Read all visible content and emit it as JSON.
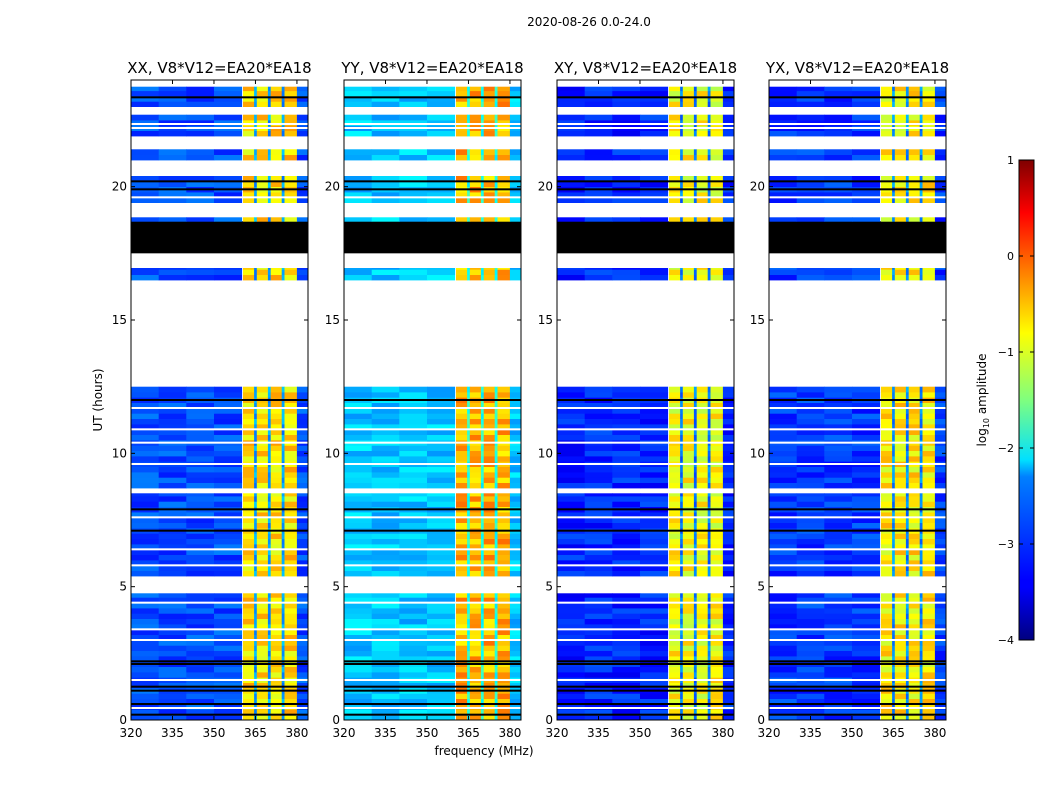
{
  "chart_data": {
    "type": "heatmap",
    "title": "2020-08-26 0.0-24.0",
    "xlabel": "frequency (MHz)",
    "ylabel": "UT (hours)",
    "xlim": [
      320,
      384
    ],
    "ylim": [
      0,
      24
    ],
    "xticks": [
      "320",
      "335",
      "350",
      "365",
      "380"
    ],
    "xtick_values": [
      320,
      335,
      350,
      365,
      380
    ],
    "yticks": [
      "0",
      "5",
      "10",
      "15",
      "20"
    ],
    "ytick_values": [
      0,
      5,
      10,
      15,
      20
    ],
    "colorbar": {
      "label_main": "log",
      "label_sub": "10",
      "label_rest": " amplitude",
      "range": [
        -4,
        1
      ],
      "ticks": [
        "1",
        "0",
        "−1",
        "−2",
        "−3",
        "−4"
      ],
      "tick_values": [
        1,
        0,
        -1,
        -2,
        -3,
        -4
      ],
      "colormap": "jet"
    },
    "panels": [
      {
        "title": "XX, V8*V12=EA20*EA18",
        "background": -3.0,
        "band": -0.7
      },
      {
        "title": "YY, V8*V12=EA20*EA18",
        "background": -2.4,
        "band": -0.5
      },
      {
        "title": "XY, V8*V12=EA20*EA18",
        "background": -3.2,
        "band": -0.9
      },
      {
        "title": "YX, V8*V12=EA20*EA18",
        "background": -3.1,
        "band": -0.8
      }
    ],
    "bright_band_MHz": [
      360.5,
      380
    ],
    "band_dips_MHz": [
      365,
      370,
      375
    ],
    "time_segments_hours": [
      [
        0.0,
        4.75,
        "data"
      ],
      [
        4.75,
        5.4,
        "flagged"
      ],
      [
        5.4,
        8.5,
        "data"
      ],
      [
        8.5,
        8.7,
        "flagged"
      ],
      [
        8.7,
        12.5,
        "data"
      ],
      [
        12.5,
        16.5,
        "flagged"
      ],
      [
        16.5,
        16.95,
        "data"
      ],
      [
        16.95,
        17.5,
        "flagged"
      ],
      [
        17.5,
        18.7,
        "zero"
      ],
      [
        18.7,
        18.85,
        "data"
      ],
      [
        18.85,
        19.4,
        "flagged"
      ],
      [
        19.4,
        20.4,
        "data"
      ],
      [
        20.4,
        21.0,
        "flagged"
      ],
      [
        21.0,
        21.4,
        "data"
      ],
      [
        21.4,
        21.9,
        "flagged"
      ],
      [
        21.9,
        22.7,
        "data"
      ],
      [
        22.7,
        23.0,
        "flagged"
      ],
      [
        23.0,
        23.75,
        "data"
      ],
      [
        23.75,
        24.0,
        "flagged"
      ]
    ],
    "thin_lines_hours": [
      [
        0.2,
        "black"
      ],
      [
        0.45,
        "white"
      ],
      [
        0.6,
        "black"
      ],
      [
        1.1,
        "black"
      ],
      [
        1.25,
        "black"
      ],
      [
        1.5,
        "white"
      ],
      [
        2.1,
        "black"
      ],
      [
        2.2,
        "black"
      ],
      [
        3.0,
        "white"
      ],
      [
        3.4,
        "white"
      ],
      [
        4.4,
        "white"
      ],
      [
        5.8,
        "white"
      ],
      [
        6.4,
        "white"
      ],
      [
        7.1,
        "black"
      ],
      [
        7.6,
        "white"
      ],
      [
        7.9,
        "black"
      ],
      [
        9.6,
        "white"
      ],
      [
        10.4,
        "white"
      ],
      [
        10.9,
        "white"
      ],
      [
        11.7,
        "white"
      ],
      [
        12.0,
        "black"
      ],
      [
        19.6,
        "white"
      ],
      [
        19.9,
        "black"
      ],
      [
        20.2,
        "black"
      ],
      [
        22.2,
        "white"
      ],
      [
        22.35,
        "white"
      ],
      [
        23.35,
        "black"
      ]
    ]
  }
}
